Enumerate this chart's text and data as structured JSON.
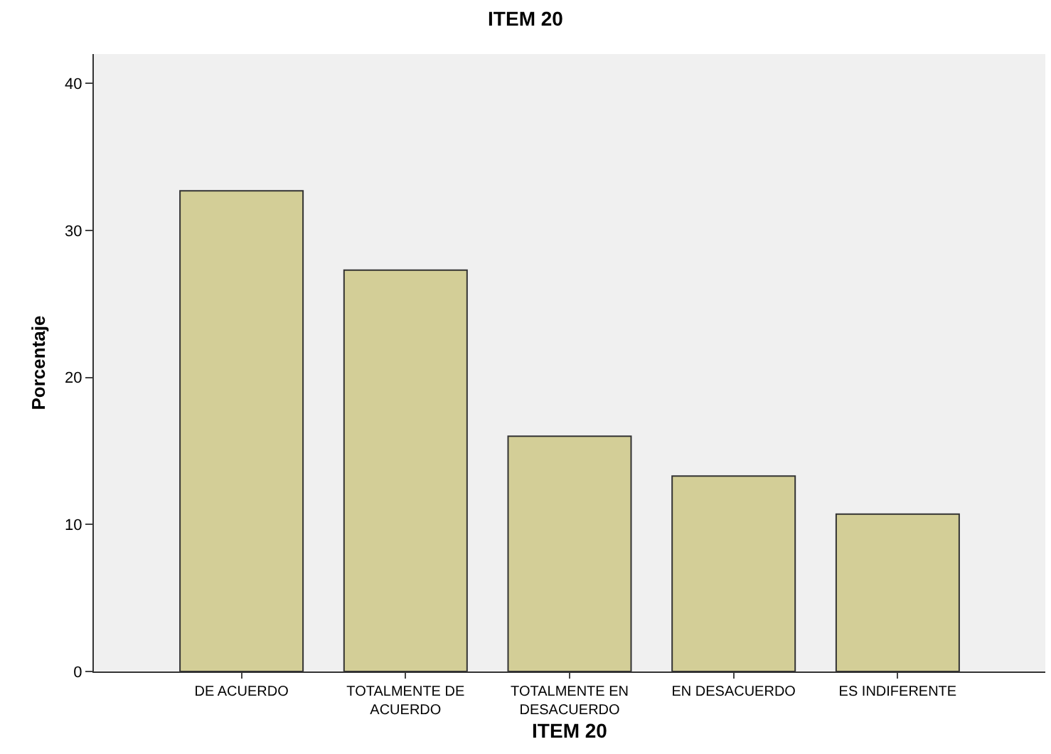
{
  "chart_data": {
    "type": "bar",
    "title": "ITEM 20",
    "xlabel": "ITEM 20",
    "ylabel": "Porcentaje",
    "categories": [
      "DE ACUERDO",
      "TOTALMENTE DE\nACUERDO",
      "TOTALMENTE EN\nDESACUERDO",
      "EN DESACUERDO",
      "ES INDIFERENTE"
    ],
    "values": [
      32.7,
      27.3,
      16.0,
      13.3,
      10.7
    ],
    "color": "#d3ce97",
    "ylim": [
      0,
      42
    ],
    "yticks": [
      0,
      10,
      20,
      30,
      40
    ],
    "grid": false,
    "legend": false
  }
}
